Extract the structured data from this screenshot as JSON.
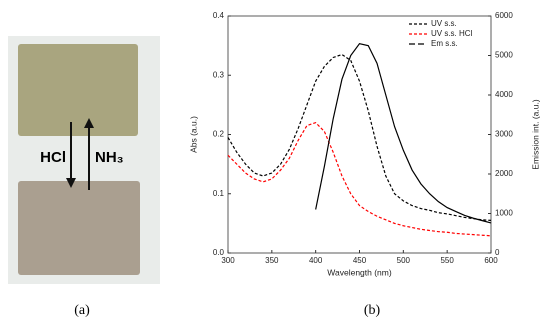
{
  "panel_a": {
    "labels": [
      "HCl",
      "NH₃"
    ]
  },
  "captions": [
    "(a)",
    "(b)"
  ],
  "chart_data": {
    "type": "line",
    "xlabel": "Wavelength (nm)",
    "ylabel": "Abs (a.u.)",
    "y2label": "Emission int. (a.u.)",
    "x": [
      300,
      310,
      320,
      330,
      340,
      350,
      360,
      370,
      380,
      390,
      400,
      410,
      420,
      430,
      440,
      450,
      460,
      470,
      480,
      490,
      500,
      510,
      520,
      530,
      540,
      550,
      560,
      570,
      580,
      590,
      600
    ],
    "xlim": [
      300,
      600
    ],
    "xticks": [
      300,
      350,
      400,
      450,
      500,
      550,
      600
    ],
    "ylim": [
      0,
      0.4
    ],
    "yticks": [
      {
        "value": 0,
        "label": "0.0"
      },
      0.1,
      0.2,
      0.3,
      0.4
    ],
    "y2lim": [
      0,
      6000
    ],
    "y2ticks": [
      0,
      1000,
      2000,
      3000,
      4000,
      5000,
      6000
    ],
    "legend": "upper right",
    "series": [
      {
        "name": "UV s.s.",
        "color": "#000000",
        "dash": "dotted",
        "values": [
          0.195,
          0.17,
          0.15,
          0.135,
          0.13,
          0.135,
          0.15,
          0.175,
          0.21,
          0.25,
          0.29,
          0.315,
          0.33,
          0.335,
          0.325,
          0.29,
          0.24,
          0.18,
          0.13,
          0.1,
          0.088,
          0.08,
          0.075,
          0.072,
          0.068,
          0.066,
          0.063,
          0.06,
          0.058,
          0.056,
          0.055
        ]
      },
      {
        "name": "UV s.s. HCl",
        "color": "#ff0000",
        "dash": "dotted",
        "values": [
          0.165,
          0.15,
          0.135,
          0.125,
          0.12,
          0.125,
          0.14,
          0.16,
          0.19,
          0.215,
          0.22,
          0.205,
          0.17,
          0.13,
          0.1,
          0.08,
          0.07,
          0.062,
          0.056,
          0.05,
          0.046,
          0.043,
          0.04,
          0.038,
          0.036,
          0.035,
          0.033,
          0.032,
          0.031,
          0.03,
          0.029
        ]
      },
      {
        "name": "Em s.s.",
        "color": "#000000",
        "dash": "solid",
        "axis": "y2",
        "values": [
          null,
          null,
          null,
          null,
          null,
          null,
          null,
          null,
          null,
          null,
          1100,
          2200,
          3400,
          4400,
          5000,
          5300,
          5250,
          4800,
          4000,
          3200,
          2600,
          2100,
          1750,
          1500,
          1300,
          1150,
          1050,
          950,
          880,
          820,
          760
        ]
      }
    ]
  }
}
